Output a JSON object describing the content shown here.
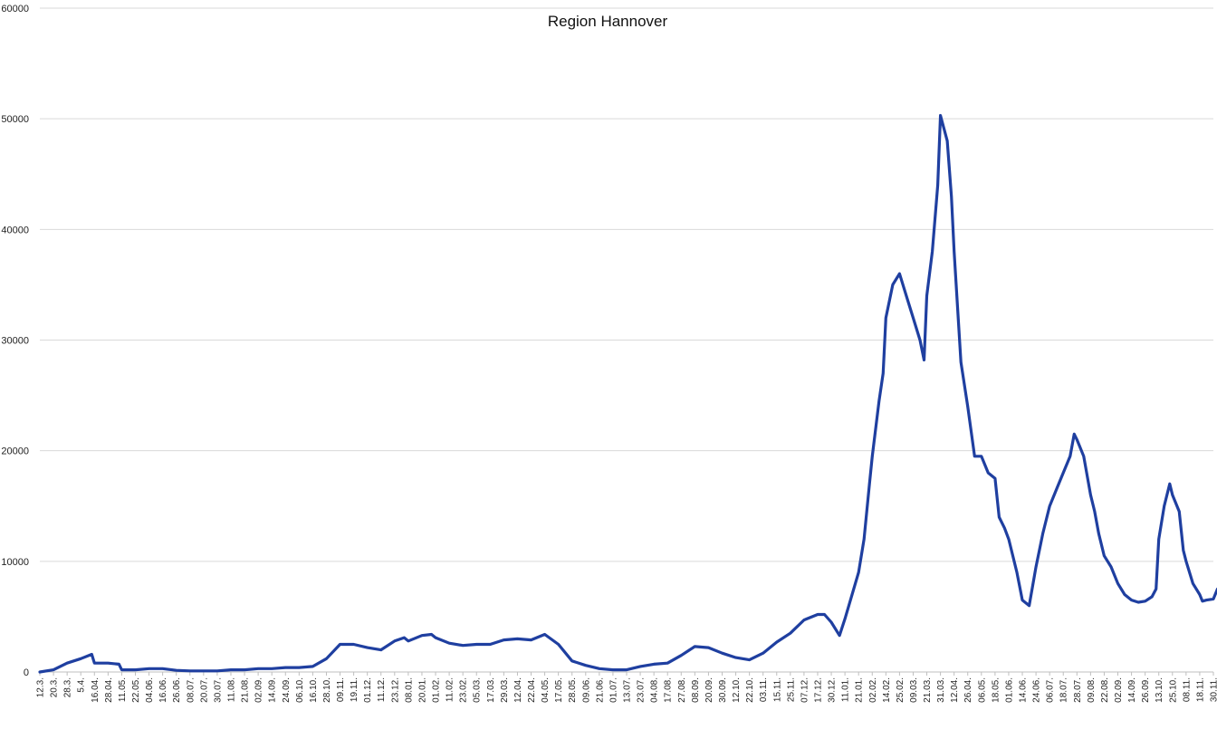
{
  "chart_data": {
    "type": "line",
    "title": "Region Hannover",
    "xlabel": "",
    "ylabel": "",
    "ylim": [
      0,
      60000
    ],
    "yticks": [
      0,
      10000,
      20000,
      30000,
      40000,
      50000,
      60000
    ],
    "grid": true,
    "legend": "none",
    "line_color": "#1f3fa0",
    "grid_color": "#d9d9d9",
    "x_tick_labels": [
      "12.3.",
      "20.3.",
      "28.3.",
      "5.4.",
      "16.04.",
      "28.04.",
      "11.05.",
      "22.05.",
      "04.06.",
      "16.06.",
      "26.06.",
      "08.07.",
      "20.07.",
      "30.07.",
      "11.08.",
      "21.08.",
      "02.09.",
      "14.09.",
      "24.09.",
      "06.10.",
      "16.10.",
      "28.10.",
      "09.11.",
      "19.11.",
      "01.12.",
      "11.12.",
      "23.12.",
      "08.01.",
      "20.01.",
      "01.02.",
      "11.02.",
      "23.02.",
      "05.03.",
      "17.03.",
      "29.03.",
      "12.04.",
      "22.04.",
      "04.05.",
      "17.05.",
      "28.05.",
      "09.06.",
      "21.06.",
      "01.07.",
      "13.07.",
      "23.07.",
      "04.08.",
      "17.08.",
      "27.08.",
      "08.09.",
      "20.09.",
      "30.09.",
      "12.10.",
      "22.10.",
      "03.11.",
      "15.11.",
      "25.11.",
      "07.12.",
      "17.12.",
      "30.12.",
      "11.01.",
      "21.01.",
      "02.02.",
      "14.02.",
      "25.02.",
      "09.03.",
      "21.03.",
      "31.03.",
      "12.04.",
      "26.04.",
      "06.05.",
      "18.05.",
      "01.06.",
      "14.06.",
      "24.06.",
      "06.07.",
      "18.07.",
      "28.07.",
      "09.08.",
      "22.08.",
      "02.09.",
      "14.09.",
      "26.09.",
      "13.10.",
      "25.10.",
      "08.11.",
      "18.11.",
      "30.11."
    ],
    "series": [
      {
        "points": [
          [
            0,
            0
          ],
          [
            1,
            200
          ],
          [
            2,
            800
          ],
          [
            3,
            1200
          ],
          [
            3.8,
            1600
          ],
          [
            4,
            800
          ],
          [
            5,
            800
          ],
          [
            5.8,
            700
          ],
          [
            6,
            200
          ],
          [
            7,
            200
          ],
          [
            8,
            300
          ],
          [
            9,
            300
          ],
          [
            10,
            150
          ],
          [
            11,
            100
          ],
          [
            12,
            100
          ],
          [
            13,
            100
          ],
          [
            14,
            200
          ],
          [
            15,
            200
          ],
          [
            16,
            300
          ],
          [
            17,
            300
          ],
          [
            18,
            400
          ],
          [
            19,
            400
          ],
          [
            20,
            500
          ],
          [
            21,
            1200
          ],
          [
            22,
            2500
          ],
          [
            23,
            2500
          ],
          [
            24,
            2200
          ],
          [
            25,
            2000
          ],
          [
            26,
            2800
          ],
          [
            26.7,
            3100
          ],
          [
            27,
            2800
          ],
          [
            28,
            3300
          ],
          [
            28.7,
            3400
          ],
          [
            29,
            3100
          ],
          [
            30,
            2600
          ],
          [
            31,
            2400
          ],
          [
            32,
            2500
          ],
          [
            33,
            2500
          ],
          [
            34,
            2900
          ],
          [
            35,
            3000
          ],
          [
            36,
            2900
          ],
          [
            37,
            3400
          ],
          [
            38,
            2500
          ],
          [
            39,
            1000
          ],
          [
            40,
            600
          ],
          [
            41,
            300
          ],
          [
            42,
            200
          ],
          [
            43,
            200
          ],
          [
            44,
            500
          ],
          [
            45,
            700
          ],
          [
            46,
            800
          ],
          [
            47,
            1500
          ],
          [
            48,
            2300
          ],
          [
            49,
            2200
          ],
          [
            50,
            1700
          ],
          [
            51,
            1300
          ],
          [
            52,
            1100
          ],
          [
            53,
            1700
          ],
          [
            54,
            2700
          ],
          [
            55,
            3500
          ],
          [
            56,
            4700
          ],
          [
            57,
            5200
          ],
          [
            57.5,
            5200
          ],
          [
            58,
            4500
          ],
          [
            58.6,
            3300
          ],
          [
            59,
            4800
          ],
          [
            60,
            9000
          ],
          [
            60.4,
            12000
          ],
          [
            60.8,
            17000
          ],
          [
            61,
            19500
          ],
          [
            61.5,
            24500
          ],
          [
            61.8,
            27000
          ],
          [
            62,
            32000
          ],
          [
            62.5,
            35000
          ],
          [
            63,
            36000
          ],
          [
            63.5,
            34000
          ],
          [
            64,
            32000
          ],
          [
            64.5,
            30000
          ],
          [
            64.8,
            28200
          ],
          [
            65,
            34000
          ],
          [
            65.4,
            38000
          ],
          [
            65.8,
            44000
          ],
          [
            66,
            50300
          ],
          [
            66.5,
            48000
          ],
          [
            66.8,
            43000
          ],
          [
            67,
            38000
          ],
          [
            67.5,
            28000
          ],
          [
            68,
            24000
          ],
          [
            68.5,
            19500
          ],
          [
            69,
            19500
          ],
          [
            69.5,
            18000
          ],
          [
            70,
            17500
          ],
          [
            70.3,
            14000
          ],
          [
            70.7,
            13000
          ],
          [
            71,
            12000
          ],
          [
            71.6,
            9000
          ],
          [
            72,
            6500
          ],
          [
            72.5,
            6000
          ],
          [
            73,
            9500
          ],
          [
            73.5,
            12500
          ],
          [
            74,
            15000
          ],
          [
            74.5,
            16500
          ],
          [
            75,
            18000
          ],
          [
            75.5,
            19500
          ],
          [
            75.8,
            21500
          ],
          [
            76,
            21000
          ],
          [
            76.5,
            19500
          ],
          [
            77,
            16000
          ],
          [
            77.3,
            14500
          ],
          [
            77.6,
            12500
          ],
          [
            78,
            10500
          ],
          [
            78.5,
            9500
          ],
          [
            79,
            8000
          ],
          [
            79.5,
            7000
          ],
          [
            80,
            6500
          ],
          [
            80.5,
            6300
          ],
          [
            81,
            6400
          ],
          [
            81.5,
            6800
          ],
          [
            81.8,
            7500
          ],
          [
            82,
            12000
          ],
          [
            82.4,
            15000
          ],
          [
            82.8,
            17000
          ],
          [
            83,
            16000
          ],
          [
            83.5,
            14500
          ],
          [
            83.8,
            11000
          ],
          [
            84,
            10000
          ],
          [
            84.5,
            8000
          ],
          [
            85,
            7000
          ],
          [
            85.2,
            6400
          ],
          [
            85.5,
            6500
          ],
          [
            86,
            6600
          ],
          [
            86.3,
            7500
          ]
        ]
      }
    ]
  }
}
